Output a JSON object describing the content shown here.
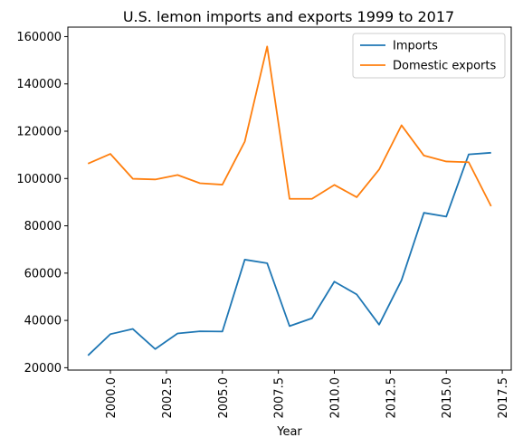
{
  "chart_data": {
    "type": "line",
    "title": "U.S. lemon imports and exports 1999 to 2017",
    "xlabel": "Year",
    "ylabel": "",
    "grid": false,
    "legend_position": "top-right",
    "xlim": [
      1998.1,
      2017.9
    ],
    "ylim": [
      19000,
      164000
    ],
    "x_ticks": [
      2000.0,
      2002.5,
      2005.0,
      2007.5,
      2010.0,
      2012.5,
      2015.0,
      2017.5
    ],
    "x_tick_labels": [
      "2000.0",
      "2002.5",
      "2005.0",
      "2007.5",
      "2010.0",
      "2012.5",
      "2015.0",
      "2017.5"
    ],
    "y_ticks": [
      20000,
      40000,
      60000,
      80000,
      100000,
      120000,
      140000,
      160000
    ],
    "y_tick_labels": [
      "20000",
      "40000",
      "60000",
      "80000",
      "100000",
      "120000",
      "140000",
      "160000"
    ],
    "x": [
      1999,
      2000,
      2001,
      2002,
      2003,
      2004,
      2005,
      2006,
      2007,
      2008,
      2009,
      2010,
      2011,
      2012,
      2013,
      2014,
      2015,
      2016,
      2017
    ],
    "series": [
      {
        "name": "Imports",
        "color": "#1f77b4",
        "values": [
          25200,
          34200,
          36400,
          27900,
          34500,
          35400,
          35300,
          65700,
          64200,
          37600,
          40900,
          56400,
          51000,
          38200,
          57000,
          85500,
          83900,
          110200,
          110900
        ]
      },
      {
        "name": "Domestic exports",
        "color": "#ff7f0e",
        "values": [
          106300,
          110400,
          99900,
          99600,
          101500,
          98000,
          97400,
          115600,
          155800,
          91400,
          91400,
          97300,
          92100,
          103800,
          122500,
          109700,
          107200,
          106900,
          88300
        ]
      }
    ]
  }
}
